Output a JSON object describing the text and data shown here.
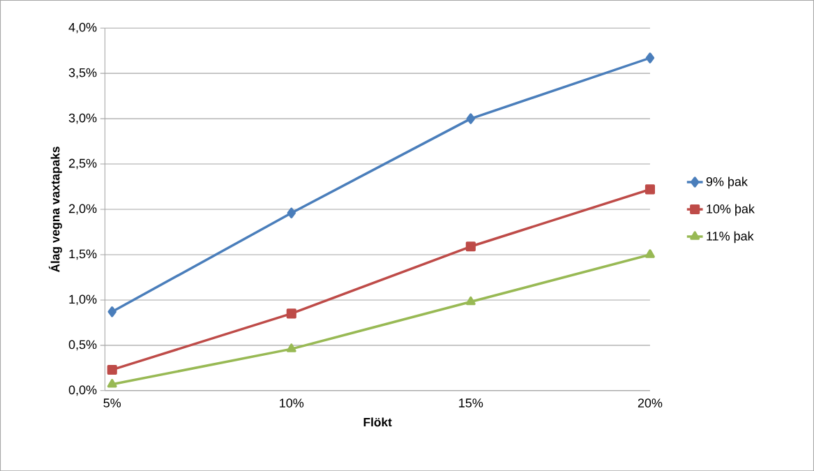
{
  "chart_data": {
    "type": "line",
    "xlabel": "Flökt",
    "ylabel": "Álag vegna vaxtapaks",
    "categories": [
      "5%",
      "10%",
      "15%",
      "20%"
    ],
    "series": [
      {
        "name": "9% þak",
        "color": "#4a7ebb",
        "marker": "diamond",
        "values": [
          0.87,
          1.96,
          3.0,
          3.67
        ]
      },
      {
        "name": "10% þak",
        "color": "#be4b48",
        "marker": "square",
        "values": [
          0.23,
          0.85,
          1.59,
          2.22
        ]
      },
      {
        "name": "11% þak",
        "color": "#98b954",
        "marker": "triangle",
        "values": [
          0.07,
          0.46,
          0.98,
          1.5
        ]
      }
    ],
    "ylim": [
      0,
      4
    ],
    "yticks": [
      {
        "value": 0,
        "label": "0,0%"
      },
      {
        "value": 0.5,
        "label": "0,5%"
      },
      {
        "value": 1,
        "label": "1,0%"
      },
      {
        "value": 1.5,
        "label": "1,5%"
      },
      {
        "value": 2,
        "label": "2,0%"
      },
      {
        "value": 2.5,
        "label": "2,5%"
      },
      {
        "value": 3,
        "label": "3,0%"
      },
      {
        "value": 3.5,
        "label": "3,5%"
      },
      {
        "value": 4,
        "label": "4,0%"
      }
    ],
    "grid": "y",
    "legend": "right",
    "line_style": "solid"
  }
}
